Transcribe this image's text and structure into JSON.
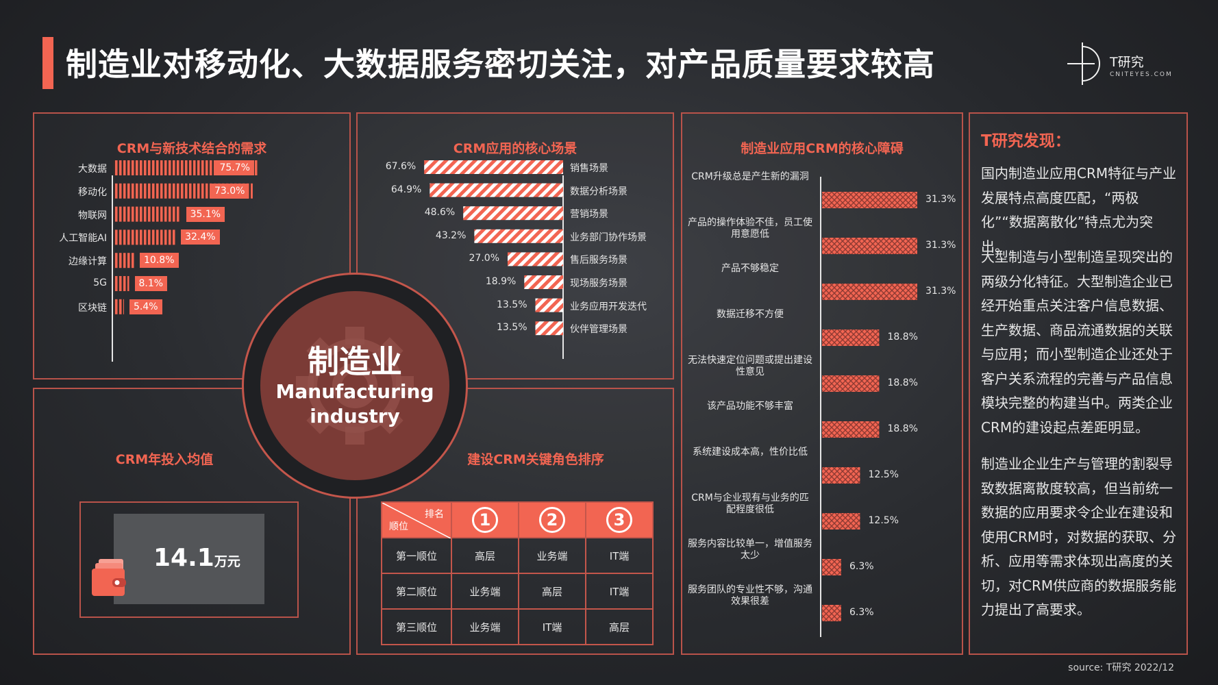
{
  "page": {
    "title": "制造业对移动化、大数据服务密切关注，对产品质量要求较高",
    "source": "source:   T研究 2022/12",
    "logo": {
      "name": "T研究",
      "sub": "CNITEYES.COM"
    },
    "accent": "#f26552"
  },
  "center": {
    "cn": "制造业",
    "en_line1": "Manufacturing",
    "en_line2": "industry"
  },
  "invest": {
    "title": "CRM年投入均值",
    "value": "14.1",
    "unit": "万元",
    "icon": "wallet-icon"
  },
  "ranking": {
    "title": "建设CRM关键角色排序",
    "header_top": "排名",
    "header_bottom": "顺位",
    "ranks": [
      "1",
      "2",
      "3"
    ],
    "rows": [
      {
        "label": "第一顺位",
        "cells": [
          "高层",
          "业务端",
          "IT端"
        ]
      },
      {
        "label": "第二顺位",
        "cells": [
          "业务端",
          "高层",
          "IT端"
        ]
      },
      {
        "label": "第三顺位",
        "cells": [
          "业务端",
          "IT端",
          "高层"
        ]
      }
    ]
  },
  "findings": {
    "title": "T研究发现：",
    "paragraphs": [
      "国内制造业应用CRM特征与产业发展特点高度匹配，“两极化”“数据离散化”特点尤为突出。",
      "大型制造与小型制造呈现突出的两级分化特征。大型制造企业已经开始重点关注客户信息数据、生产数据、商品流通数据的关联与应用；而小型制造企业还处于客户关系流程的完善与产品信息模块完整的构建当中。两类企业CRM的建设起点差距明显。",
      "制造业企业生产与管理的割裂导致数据离散度较高，但当前统一数据的应用要求令企业在建设和使用CRM时，对数据的获取、分析、应用等需求体现出高度的关切，对CRM供应商的数据服务能力提出了高要求。"
    ]
  },
  "chart_data": [
    {
      "type": "bar",
      "title": "CRM与新技术结合的需求",
      "categories": [
        "大数据",
        "移动化",
        "物联网",
        "人工智能AI",
        "边缘计算",
        "5G",
        "区块链"
      ],
      "values": [
        75.7,
        73.0,
        35.1,
        32.4,
        10.8,
        8.1,
        5.4
      ],
      "labels": [
        "75.7%",
        "73.0%",
        "35.1%",
        "32.4%",
        "10.8%",
        "8.1%",
        "5.4%"
      ],
      "unit": "%",
      "orientation": "horizontal"
    },
    {
      "type": "bar",
      "title": "CRM应用的核心场景",
      "categories": [
        "销售场景",
        "数据分析场景",
        "营销场景",
        "业务部门协作场景",
        "售后服务场景",
        "现场服务场景",
        "业务应用开发迭代",
        "伙伴管理场景"
      ],
      "values": [
        67.6,
        64.9,
        48.6,
        43.2,
        27.0,
        18.9,
        13.5,
        13.5
      ],
      "labels": [
        "67.6%",
        "64.9%",
        "48.6%",
        "43.2%",
        "27.0%",
        "18.9%",
        "13.5%",
        "13.5%"
      ],
      "unit": "%",
      "orientation": "horizontal-left"
    },
    {
      "type": "bar",
      "title": "制造业应用CRM的核心障碍",
      "categories": [
        "CRM升级总是产生新的漏洞",
        "产品的操作体验不佳，员工使用意愿低",
        "产品不够稳定",
        "数据迁移不方便",
        "无法快速定位问题或提出建设性意见",
        "该产品功能不够丰富",
        "系统建设成本高，性价比低",
        "CRM与企业现有与业务的匹配程度很低",
        "服务内容比较单一，增值服务太少",
        "服务团队的专业性不够，沟通效果很差"
      ],
      "values": [
        31.3,
        31.3,
        31.3,
        18.8,
        18.8,
        18.8,
        12.5,
        12.5,
        6.3,
        6.3
      ],
      "labels": [
        "31.3%",
        "31.3%",
        "31.3%",
        "18.8%",
        "18.8%",
        "18.8%",
        "12.5%",
        "12.5%",
        "6.3%",
        "6.3%"
      ],
      "unit": "%",
      "orientation": "horizontal"
    }
  ]
}
